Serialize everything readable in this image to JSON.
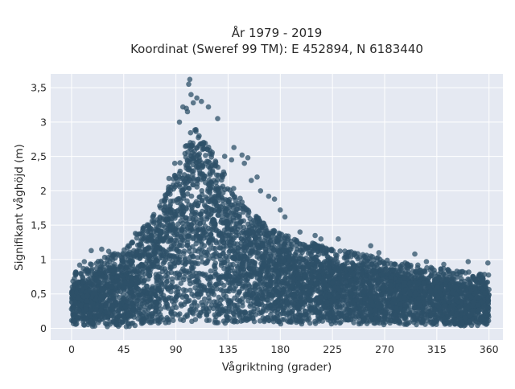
{
  "chart_data": {
    "type": "scatter",
    "title": "År 1979 - 2019",
    "subtitle": "Koordinat (Sweref 99 TM): E 452894, N 6183440",
    "xlabel": "Vågriktning (grader)",
    "ylabel": "Signifikant våghöjd (m)",
    "xlim": [
      -18,
      372
    ],
    "ylim": [
      -0.17,
      3.7
    ],
    "x_ticks": [
      0,
      45,
      90,
      135,
      180,
      225,
      270,
      315,
      360
    ],
    "x_tick_labels": [
      "0",
      "45",
      "90",
      "135",
      "180",
      "225",
      "270",
      "315",
      "360"
    ],
    "y_ticks": [
      0,
      0.5,
      1,
      1.5,
      2,
      2.5,
      3,
      3.5
    ],
    "y_tick_labels": [
      "0",
      "0,5",
      "1",
      "1,5",
      "2",
      "2,5",
      "3",
      "3,5"
    ],
    "grid": true,
    "legend": false,
    "plot_background": "#e5e9f2",
    "marker_color": "#2e5068",
    "marker_opacity": 0.75,
    "envelope": {
      "direction": [
        0,
        15,
        30,
        45,
        60,
        75,
        90,
        100,
        105,
        110,
        120,
        135,
        150,
        165,
        180,
        200,
        225,
        250,
        270,
        290,
        315,
        340,
        360
      ],
      "min_height": [
        0.05,
        0.03,
        0.02,
        0.02,
        0.03,
        0.05,
        0.07,
        0.08,
        0.08,
        0.08,
        0.08,
        0.07,
        0.06,
        0.06,
        0.06,
        0.06,
        0.06,
        0.06,
        0.05,
        0.05,
        0.04,
        0.03,
        0.05
      ],
      "dense_max_height": [
        0.62,
        0.75,
        0.85,
        0.95,
        1.2,
        1.5,
        1.95,
        2.4,
        2.55,
        2.45,
        2.25,
        1.85,
        1.5,
        1.3,
        1.15,
        1.05,
        0.95,
        0.88,
        0.82,
        0.75,
        0.7,
        0.65,
        0.6
      ]
    },
    "outliers": [
      {
        "x": 102,
        "y": 3.62
      },
      {
        "x": 101,
        "y": 3.55
      },
      {
        "x": 103,
        "y": 3.4
      },
      {
        "x": 108,
        "y": 3.35
      },
      {
        "x": 112,
        "y": 3.3
      },
      {
        "x": 96,
        "y": 3.22
      },
      {
        "x": 99,
        "y": 3.2
      },
      {
        "x": 118,
        "y": 3.22
      },
      {
        "x": 126,
        "y": 3.05
      },
      {
        "x": 93,
        "y": 3.0
      },
      {
        "x": 100,
        "y": 3.15
      },
      {
        "x": 105,
        "y": 3.28
      },
      {
        "x": 140,
        "y": 2.63
      },
      {
        "x": 147,
        "y": 2.52
      },
      {
        "x": 152,
        "y": 2.48
      },
      {
        "x": 149,
        "y": 2.4
      },
      {
        "x": 132,
        "y": 2.5
      },
      {
        "x": 138,
        "y": 2.45
      },
      {
        "x": 160,
        "y": 2.2
      },
      {
        "x": 155,
        "y": 2.15
      },
      {
        "x": 163,
        "y": 2.0
      },
      {
        "x": 170,
        "y": 1.92
      },
      {
        "x": 175,
        "y": 1.88
      },
      {
        "x": 180,
        "y": 1.72
      },
      {
        "x": 184,
        "y": 1.62
      },
      {
        "x": 197,
        "y": 1.4
      },
      {
        "x": 210,
        "y": 1.35
      },
      {
        "x": 215,
        "y": 1.3
      },
      {
        "x": 230,
        "y": 1.3
      },
      {
        "x": 258,
        "y": 1.2
      },
      {
        "x": 265,
        "y": 1.1
      },
      {
        "x": 296,
        "y": 1.08
      },
      {
        "x": 306,
        "y": 0.97
      },
      {
        "x": 321,
        "y": 0.93
      },
      {
        "x": 342,
        "y": 0.97
      },
      {
        "x": 359,
        "y": 0.95
      },
      {
        "x": 17,
        "y": 1.13
      },
      {
        "x": 11,
        "y": 0.97
      },
      {
        "x": 4,
        "y": 0.8
      },
      {
        "x": 7,
        "y": 0.92
      },
      {
        "x": 32,
        "y": 1.12
      },
      {
        "x": 26,
        "y": 1.15
      },
      {
        "x": 55,
        "y": 1.38
      },
      {
        "x": 62,
        "y": 1.45
      },
      {
        "x": 70,
        "y": 1.62
      },
      {
        "x": 76,
        "y": 1.78
      },
      {
        "x": 84,
        "y": 2.18
      },
      {
        "x": 89,
        "y": 2.4
      }
    ]
  }
}
